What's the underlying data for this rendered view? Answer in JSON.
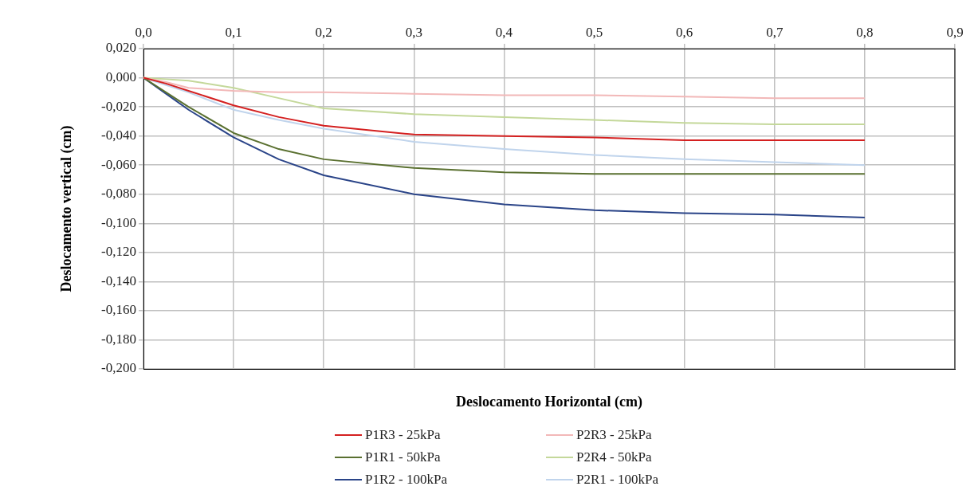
{
  "chart_data": {
    "type": "line",
    "xlabel": "Deslocamento Horizontal (cm)",
    "ylabel": "Deslocamento vertical (cm)",
    "x": [
      0,
      0.025,
      0.05,
      0.1,
      0.15,
      0.2,
      0.3,
      0.4,
      0.5,
      0.6,
      0.7,
      0.8
    ],
    "series": [
      {
        "name": "P1R3 - 25kPa",
        "color": "#d42020",
        "values": [
          0,
          -0.004,
          -0.009,
          -0.019,
          -0.027,
          -0.033,
          -0.039,
          -0.04,
          -0.041,
          -0.043,
          -0.043,
          -0.043
        ]
      },
      {
        "name": "P2R3 - 25kPa",
        "color": "#f2b8b8",
        "values": [
          0,
          -0.003,
          -0.007,
          -0.009,
          -0.01,
          -0.01,
          -0.011,
          -0.012,
          -0.012,
          -0.013,
          -0.014,
          -0.014
        ]
      },
      {
        "name": "P1R1 - 50kPa",
        "color": "#5a7030",
        "values": [
          0,
          -0.01,
          -0.02,
          -0.038,
          -0.049,
          -0.056,
          -0.062,
          -0.065,
          -0.066,
          -0.066,
          -0.066,
          -0.066
        ]
      },
      {
        "name": "P2R4 - 50kPa",
        "color": "#c4d89a",
        "values": [
          0,
          -0.001,
          -0.002,
          -0.007,
          -0.014,
          -0.021,
          -0.025,
          -0.027,
          -0.029,
          -0.031,
          -0.032,
          -0.032
        ]
      },
      {
        "name": "P1R2 - 100kPa",
        "color": "#2a4488",
        "values": [
          0,
          -0.011,
          -0.022,
          -0.041,
          -0.056,
          -0.067,
          -0.08,
          -0.087,
          -0.091,
          -0.093,
          -0.094,
          -0.096
        ]
      },
      {
        "name": "P2R1 - 100kPa",
        "color": "#c0d4ec",
        "values": [
          0,
          -0.005,
          -0.01,
          -0.022,
          -0.029,
          -0.035,
          -0.044,
          -0.049,
          -0.053,
          -0.056,
          -0.058,
          -0.06
        ]
      }
    ],
    "xlim": [
      0,
      0.9
    ],
    "xticks": [
      {
        "value": 0,
        "label": "0,0"
      },
      {
        "value": 0.1,
        "label": "0,1"
      },
      {
        "value": 0.2,
        "label": "0,2"
      },
      {
        "value": 0.3,
        "label": "0,3"
      },
      {
        "value": 0.4,
        "label": "0,4"
      },
      {
        "value": 0.5,
        "label": "0,5"
      },
      {
        "value": 0.6,
        "label": "0,6"
      },
      {
        "value": 0.7,
        "label": "0,7"
      },
      {
        "value": 0.8,
        "label": "0,8"
      },
      {
        "value": 0.9,
        "label": "0,9"
      }
    ],
    "ylim": [
      -0.2,
      0.02
    ],
    "yticks": [
      {
        "value": 0.02,
        "label": "0,020"
      },
      {
        "value": 0,
        "label": "0,000"
      },
      {
        "value": -0.02,
        "label": "-0,020"
      },
      {
        "value": -0.04,
        "label": "-0,040"
      },
      {
        "value": -0.06,
        "label": "-0,060"
      },
      {
        "value": -0.08,
        "label": "-0,080"
      },
      {
        "value": -0.1,
        "label": "-0,100"
      },
      {
        "value": -0.12,
        "label": "-0,120"
      },
      {
        "value": -0.14,
        "label": "-0,140"
      },
      {
        "value": -0.16,
        "label": "-0,160"
      },
      {
        "value": -0.18,
        "label": "-0,180"
      },
      {
        "value": -0.2,
        "label": "-0,200"
      }
    ],
    "grid": true,
    "legend": "bottom",
    "marker": "none",
    "line_style": "solid"
  }
}
